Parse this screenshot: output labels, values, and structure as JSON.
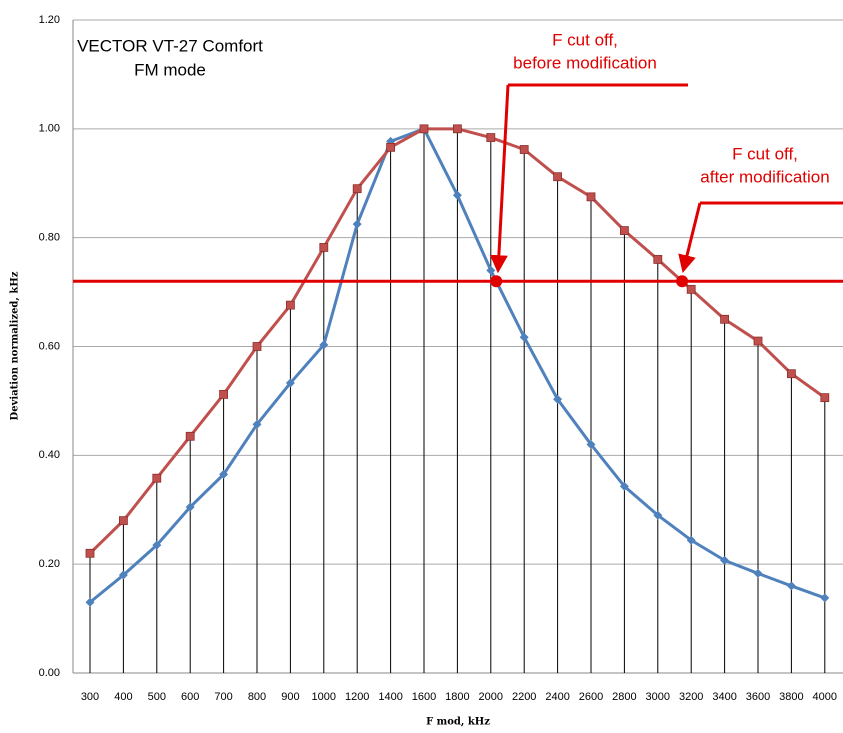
{
  "chart_data": {
    "type": "line",
    "title": "VECTOR VT-27 Comfort",
    "subtitle": "FM mode",
    "x_label": "F mod, kHz",
    "y_label": "Deviation normalized, kHz",
    "categories": [
      "300",
      "400",
      "500",
      "600",
      "700",
      "800",
      "900",
      "1000",
      "1200",
      "1400",
      "1600",
      "1800",
      "2000",
      "2200",
      "2400",
      "2600",
      "2800",
      "3000",
      "3200",
      "3400",
      "3600",
      "3800",
      "4000"
    ],
    "series": [
      {
        "name": "before modification",
        "color": "#4f81bd",
        "marker": "diamond",
        "values": [
          0.13,
          0.18,
          0.235,
          0.305,
          0.365,
          0.457,
          0.533,
          0.603,
          0.825,
          0.977,
          1.0,
          0.878,
          0.74,
          0.617,
          0.503,
          0.42,
          0.343,
          0.29,
          0.244,
          0.207,
          0.183,
          0.16,
          0.138
        ]
      },
      {
        "name": "after modification",
        "color": "#c0504d",
        "marker": "square",
        "values": [
          0.22,
          0.28,
          0.358,
          0.435,
          0.512,
          0.6,
          0.676,
          0.782,
          0.89,
          0.966,
          1.0,
          1.0,
          0.984,
          0.962,
          0.912,
          0.875,
          0.813,
          0.76,
          0.705,
          0.65,
          0.61,
          0.55,
          0.506
        ]
      }
    ],
    "threshold": 0.72,
    "threshold_color": "#e00000",
    "annotations": [
      {
        "lines": [
          "F cut off,",
          "before modification"
        ]
      },
      {
        "lines": [
          "F cut off,",
          "after modification"
        ]
      }
    ],
    "ylim": [
      0,
      1.2
    ],
    "yticks": [
      {
        "value": 0,
        "label": "0.00"
      },
      {
        "value": 0.2,
        "label": "0.20"
      },
      {
        "value": 0.4,
        "label": "0.40"
      },
      {
        "value": 0.6,
        "label": "0.60"
      },
      {
        "value": 0.8,
        "label": "0.80"
      },
      {
        "value": 1.0,
        "label": "1.00"
      },
      {
        "value": 1.2,
        "label": "1.20"
      }
    ],
    "grid": true,
    "drop_lines": true
  }
}
